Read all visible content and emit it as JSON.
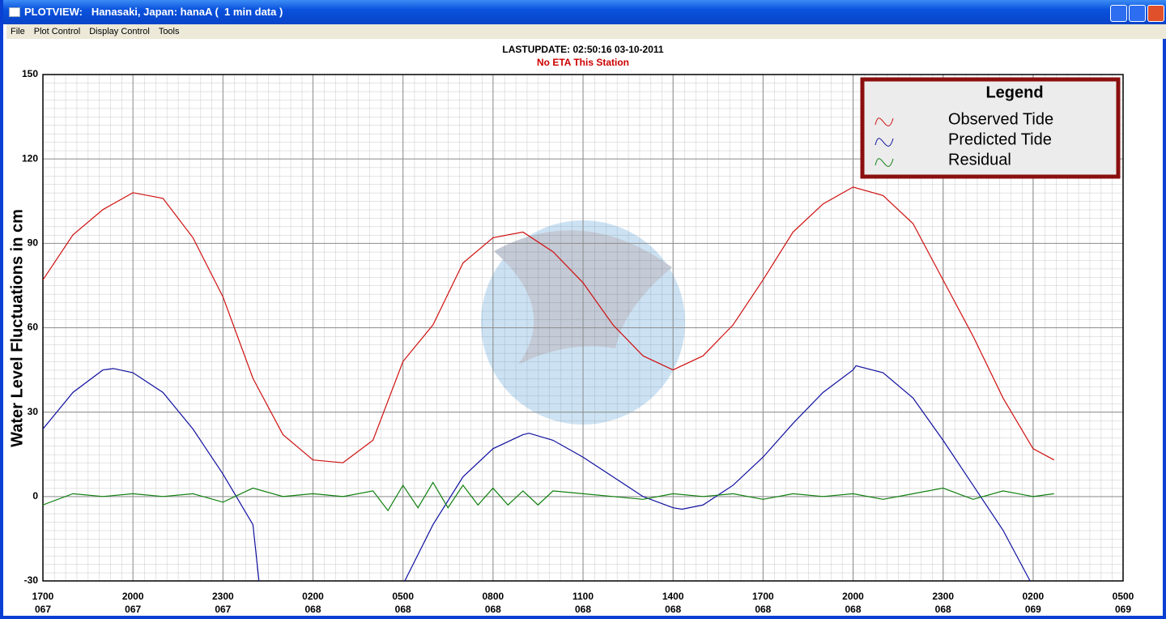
{
  "window": {
    "title": "PLOTVIEW:   Hanasaki, Japan: hanaA (  1 min data )",
    "menu": [
      "File",
      "Plot Control",
      "Display Control",
      "Tools"
    ]
  },
  "chart_data": {
    "type": "line",
    "title": "LASTUPDATE: 02:50:16  03-10-2011",
    "subtitle": "No ETA This Station",
    "y_label": "Water Level Fluctuations in cm",
    "legend_title": "Legend",
    "legend_position": "upper right",
    "grid": true,
    "xlim": [
      0,
      36
    ],
    "xticks": [
      {
        "value": 0,
        "label": "1700",
        "day": "067"
      },
      {
        "value": 3,
        "label": "2000",
        "day": "067"
      },
      {
        "value": 6,
        "label": "2300",
        "day": "067"
      },
      {
        "value": 9,
        "label": "0200",
        "day": "068"
      },
      {
        "value": 12,
        "label": "0500",
        "day": "068"
      },
      {
        "value": 15,
        "label": "0800",
        "day": "068"
      },
      {
        "value": 18,
        "label": "1100",
        "day": "068"
      },
      {
        "value": 21,
        "label": "1400",
        "day": "068"
      },
      {
        "value": 24,
        "label": "1700",
        "day": "068"
      },
      {
        "value": 27,
        "label": "2000",
        "day": "068"
      },
      {
        "value": 30,
        "label": "2300",
        "day": "068"
      },
      {
        "value": 33,
        "label": "0200",
        "day": "069"
      },
      {
        "value": 36,
        "label": "0500",
        "day": "069"
      }
    ],
    "ylim": [
      -30,
      150
    ],
    "yticks": [
      -30,
      0,
      30,
      60,
      90,
      120,
      150
    ],
    "series": [
      {
        "name": "Observed Tide",
        "color": "#d01010",
        "x": [
          0,
          1,
          2,
          3,
          4,
          5,
          6,
          7,
          8,
          9,
          10,
          11,
          12,
          13,
          14,
          15,
          16,
          17,
          18,
          19,
          20,
          21,
          22,
          23,
          24,
          25,
          26,
          27,
          28,
          29,
          30,
          31,
          32,
          33,
          33.7
        ],
        "values": [
          77,
          93,
          102,
          108,
          106,
          92,
          71,
          42,
          22,
          13,
          12,
          20,
          48,
          61,
          83,
          92,
          94,
          87,
          76,
          61,
          50,
          45,
          50,
          61,
          77,
          94,
          104,
          110,
          107,
          97,
          77,
          57,
          35,
          17,
          13
        ]
      },
      {
        "name": "Predicted Tide",
        "color": "#1010a0",
        "x": [
          0,
          1,
          2,
          2.35,
          3,
          4,
          5,
          6,
          7,
          7.2,
          9.5,
          12.06,
          13,
          14,
          15,
          16,
          16.2,
          17,
          18,
          19,
          20,
          21,
          21.3,
          22,
          23,
          24,
          25,
          26,
          27,
          27.1,
          28,
          29,
          30,
          31,
          32,
          32.9
        ],
        "values": [
          24,
          37,
          45,
          45.5,
          44,
          37,
          24,
          8,
          -10,
          -30,
          null,
          -30,
          -10,
          7,
          17,
          22,
          22.5,
          20,
          14,
          7,
          0,
          -4,
          -4.5,
          -3,
          4,
          14,
          26,
          37,
          45,
          46.5,
          44,
          35,
          20,
          4,
          -12,
          -30
        ]
      },
      {
        "name": "Residual",
        "color": "#108010",
        "x": [
          0,
          1,
          2,
          3,
          4,
          5,
          6,
          7,
          8,
          9,
          10,
          11,
          11.5,
          12,
          12.5,
          13,
          13.5,
          14,
          14.5,
          15,
          15.5,
          16,
          16.5,
          17,
          18,
          19,
          20,
          21,
          22,
          23,
          24,
          25,
          26,
          27,
          28,
          29,
          30,
          31,
          32,
          33,
          33.7
        ],
        "values": [
          -3,
          1,
          0,
          1,
          0,
          1,
          -2,
          3,
          0,
          1,
          0,
          2,
          -5,
          4,
          -4,
          5,
          -4,
          4,
          -3,
          3,
          -3,
          2,
          -3,
          2,
          1,
          0,
          -1,
          1,
          0,
          1,
          -1,
          1,
          0,
          1,
          -1,
          1,
          3,
          -1,
          2,
          0,
          1
        ]
      }
    ]
  }
}
